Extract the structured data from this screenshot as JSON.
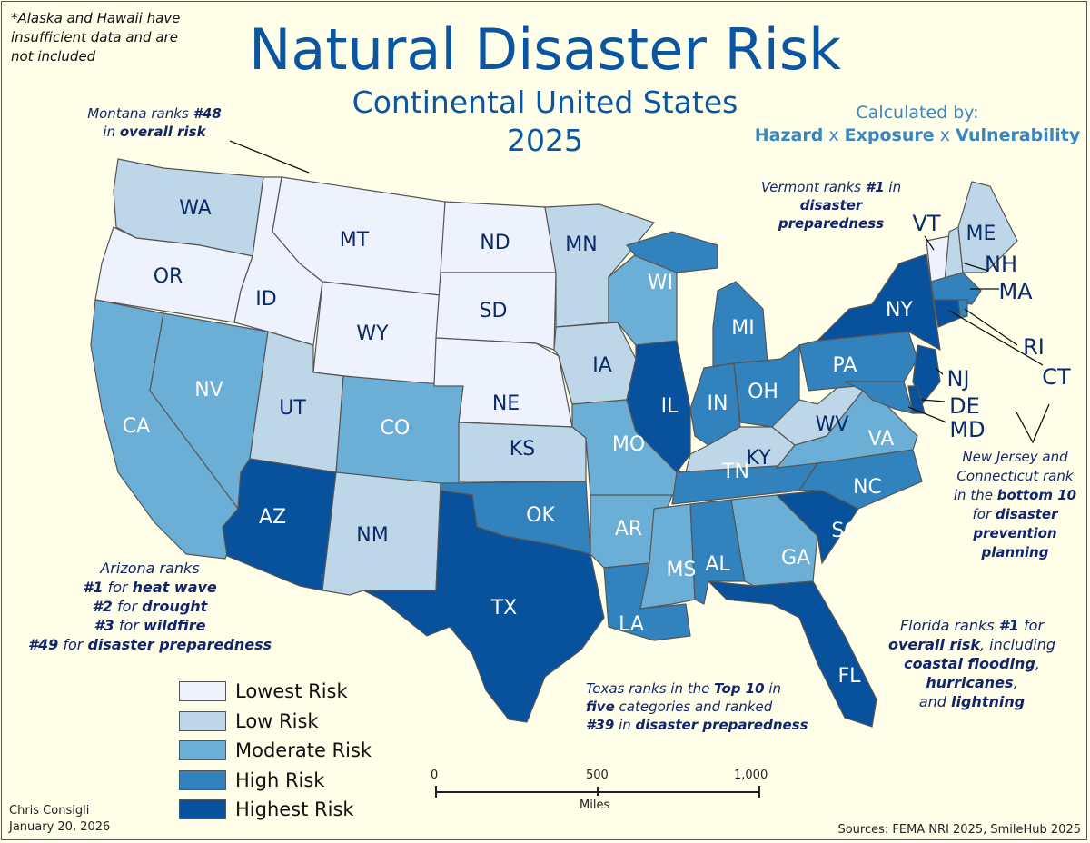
{
  "title": "Natural Disaster Risk",
  "subtitle_line1": "Continental United States",
  "subtitle_line2": "2025",
  "calculation": {
    "label": "Calculated by:",
    "term1": "Hazard",
    "op": "x",
    "term2": "Exposure",
    "term3": "Vulnerability"
  },
  "footnote": [
    "*Alaska and Hawaii have",
    "insufficient data and are",
    "not included"
  ],
  "annotations": {
    "montana": {
      "l1a": "Montana ranks ",
      "l1b": "#48",
      "l2a": "in ",
      "l2b": "overall risk"
    },
    "vermont": {
      "l1a": "Vermont ranks ",
      "l1b": "#1",
      "l1c": " in",
      "l2": "disaster",
      "l3": "preparedness"
    },
    "arizona": {
      "l1": "Arizona ranks",
      "l2a": "#1",
      "l2b": " for ",
      "l2c": "heat wave",
      "l3a": "#2",
      "l3b": " for ",
      "l3c": "drought",
      "l4a": "#3",
      "l4b": " for ",
      "l4c": "wildfire",
      "l5a": "#49",
      "l5b": " for ",
      "l5c": "disaster preparedness"
    },
    "texas": {
      "l1a": "Texas ranks in the ",
      "l1b": "Top 10",
      "l1c": " in",
      "l2a": "five",
      "l2b": " categories and ranked",
      "l3a": "#39",
      "l3b": " in ",
      "l3c": "disaster preparedness"
    },
    "florida": {
      "l1a": "Florida ranks ",
      "l1b": "#1",
      "l1c": " for",
      "l2a": "overall risk",
      "l2b": ", including",
      "l3": "coastal flooding",
      "l3b": ",",
      "l4": "hurricanes",
      "l4b": ",",
      "l5a": "and ",
      "l5b": "lightning"
    },
    "nj_ct": {
      "l1": "New Jersey and",
      "l2": "Connecticut rank",
      "l3a": "in the ",
      "l3b": "bottom 10",
      "l4a": "for ",
      "l4b": "disaster",
      "l5": "prevention",
      "l6": "planning"
    }
  },
  "risk_colors": {
    "lowest": "#eef2fc",
    "low": "#bdd7e8",
    "moderate": "#6baed6",
    "high": "#3182bd",
    "highest": "#08519c"
  },
  "legend": [
    {
      "level": "lowest",
      "label": "Lowest Risk"
    },
    {
      "level": "low",
      "label": "Low Risk"
    },
    {
      "level": "moderate",
      "label": "Moderate Risk"
    },
    {
      "level": "high",
      "label": "High Risk"
    },
    {
      "level": "highest",
      "label": "Highest Risk"
    }
  ],
  "states": [
    {
      "code": "WA",
      "risk": "low"
    },
    {
      "code": "OR",
      "risk": "lowest"
    },
    {
      "code": "CA",
      "risk": "moderate"
    },
    {
      "code": "NV",
      "risk": "moderate"
    },
    {
      "code": "ID",
      "risk": "lowest"
    },
    {
      "code": "MT",
      "risk": "lowest"
    },
    {
      "code": "WY",
      "risk": "lowest"
    },
    {
      "code": "UT",
      "risk": "low"
    },
    {
      "code": "CO",
      "risk": "moderate"
    },
    {
      "code": "AZ",
      "risk": "highest"
    },
    {
      "code": "NM",
      "risk": "low"
    },
    {
      "code": "ND",
      "risk": "lowest"
    },
    {
      "code": "SD",
      "risk": "lowest"
    },
    {
      "code": "NE",
      "risk": "lowest"
    },
    {
      "code": "KS",
      "risk": "low"
    },
    {
      "code": "OK",
      "risk": "high"
    },
    {
      "code": "TX",
      "risk": "highest"
    },
    {
      "code": "MN",
      "risk": "low"
    },
    {
      "code": "IA",
      "risk": "low"
    },
    {
      "code": "MO",
      "risk": "moderate"
    },
    {
      "code": "AR",
      "risk": "moderate"
    },
    {
      "code": "LA",
      "risk": "high"
    },
    {
      "code": "WI",
      "risk": "moderate"
    },
    {
      "code": "IL",
      "risk": "highest"
    },
    {
      "code": "MI",
      "risk": "high"
    },
    {
      "code": "IN",
      "risk": "high"
    },
    {
      "code": "OH",
      "risk": "high"
    },
    {
      "code": "KY",
      "risk": "low"
    },
    {
      "code": "TN",
      "risk": "high"
    },
    {
      "code": "MS",
      "risk": "moderate"
    },
    {
      "code": "AL",
      "risk": "high"
    },
    {
      "code": "GA",
      "risk": "moderate"
    },
    {
      "code": "FL",
      "risk": "highest"
    },
    {
      "code": "SC",
      "risk": "highest"
    },
    {
      "code": "NC",
      "risk": "high"
    },
    {
      "code": "VA",
      "risk": "moderate"
    },
    {
      "code": "WV",
      "risk": "low"
    },
    {
      "code": "PA",
      "risk": "high"
    },
    {
      "code": "NY",
      "risk": "highest"
    },
    {
      "code": "VT",
      "risk": "lowest"
    },
    {
      "code": "NH",
      "risk": "low"
    },
    {
      "code": "ME",
      "risk": "low"
    },
    {
      "code": "MA",
      "risk": "high"
    },
    {
      "code": "CT",
      "risk": "highest"
    },
    {
      "code": "RI",
      "risk": "high"
    },
    {
      "code": "NJ",
      "risk": "highest"
    },
    {
      "code": "DE",
      "risk": "highest"
    },
    {
      "code": "MD",
      "risk": "high"
    }
  ],
  "scale_bar": {
    "ticks": [
      "0",
      "500",
      "1,000"
    ],
    "unit": "Miles"
  },
  "author": "Chris Consigli",
  "date": "January 20, 2026",
  "sources": "Sources: FEMA NRI 2025, SmileHub 2025"
}
